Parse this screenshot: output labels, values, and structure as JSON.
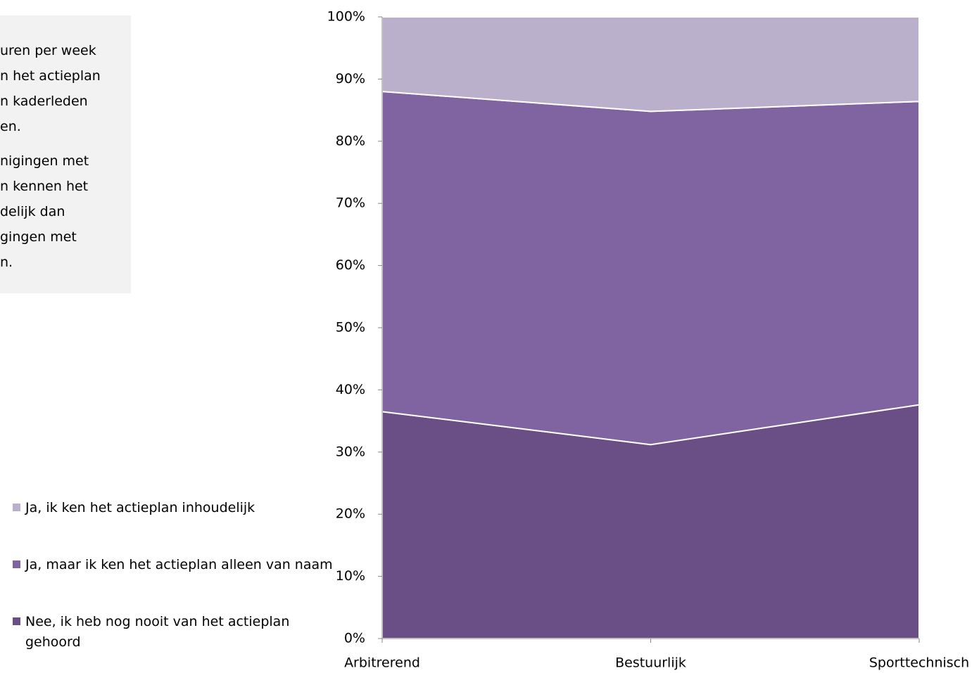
{
  "sidebar": {
    "lines": [
      "uren per week",
      "n het actieplan",
      "n kaderleden",
      "en.",
      "nigingen met",
      "n kennen het",
      "delijk dan",
      "gingen met",
      "n."
    ]
  },
  "chart_data": {
    "type": "area",
    "stacked": true,
    "categories": [
      "Arbitrerend",
      "Bestuurlijk",
      "Sporttechnisch"
    ],
    "series": [
      {
        "name": "Nee, ik heb nog nooit van het actieplan gehoord",
        "color": "#6a4f87",
        "values": [
          36.5,
          31.2,
          37.6
        ]
      },
      {
        "name": "Ja, maar ik ken het actieplan alleen van naam",
        "color": "#8064a2",
        "values": [
          51.5,
          53.6,
          48.8
        ]
      },
      {
        "name": "Ja, ik ken het actieplan inhoudelijk",
        "color": "#bab0cb",
        "values": [
          12.0,
          15.2,
          13.6
        ]
      }
    ],
    "ylim": [
      0,
      100
    ],
    "yticks": [
      {
        "value": 0,
        "label": "0%"
      },
      {
        "value": 10,
        "label": "10%"
      },
      {
        "value": 20,
        "label": "20%"
      },
      {
        "value": 30,
        "label": "30%"
      },
      {
        "value": 40,
        "label": "40%"
      },
      {
        "value": 50,
        "label": "50%"
      },
      {
        "value": 60,
        "label": "60%"
      },
      {
        "value": 70,
        "label": "70%"
      },
      {
        "value": 80,
        "label": "80%"
      },
      {
        "value": 90,
        "label": "90%"
      },
      {
        "value": 100,
        "label": "100%"
      }
    ]
  }
}
